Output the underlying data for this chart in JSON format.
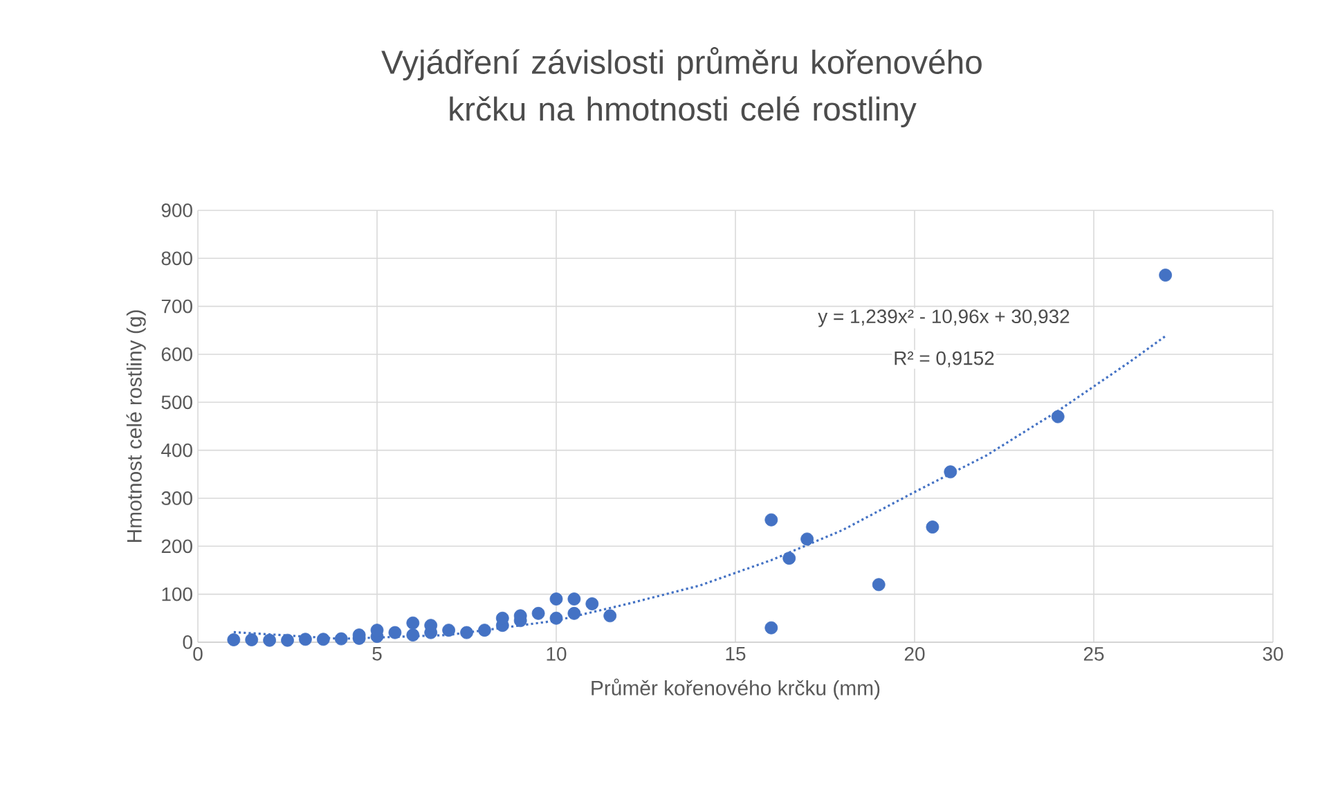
{
  "chart_data": {
    "type": "scatter",
    "title": "Vyjádření závislosti průměru kořenového krčku na hmotnosti celé rostliny",
    "xlabel": "Průměr kořenového krčku (mm)",
    "ylabel": "Hmotnost celé rostliny (g)",
    "xlim": [
      0,
      30
    ],
    "ylim": [
      0,
      900
    ],
    "xticks": [
      0,
      5,
      10,
      15,
      20,
      25,
      30
    ],
    "yticks": [
      0,
      100,
      200,
      300,
      400,
      500,
      600,
      700,
      800,
      900
    ],
    "grid": true,
    "marker": "circle",
    "annotations": [
      "y = 1,239x² - 10,96x + 30,932",
      "R² = 0,9152"
    ],
    "series": [
      {
        "color": "#4472c4",
        "x": [
          1,
          1.5,
          2,
          2.5,
          3,
          3.5,
          4,
          4.5,
          4.5,
          5,
          5,
          5.5,
          6,
          6,
          6.5,
          6.5,
          7,
          7.5,
          8,
          8.5,
          8.5,
          9,
          9,
          9.5,
          10,
          10,
          10.5,
          10.5,
          11,
          11.5,
          16,
          16,
          16.5,
          17,
          19,
          20.5,
          21,
          24,
          27
        ],
        "values": [
          5,
          5,
          4,
          4,
          6,
          6,
          7,
          8,
          15,
          12,
          25,
          20,
          15,
          40,
          20,
          35,
          25,
          20,
          25,
          35,
          50,
          45,
          55,
          60,
          50,
          90,
          60,
          90,
          80,
          55,
          30,
          255,
          175,
          215,
          120,
          240,
          355,
          470,
          765
        ]
      },
      {
        "type": "line",
        "color": "#4472c4",
        "line_style": "dotted",
        "marker": "none",
        "x": [
          1,
          4,
          7,
          10,
          12,
          14,
          16,
          18,
          20,
          22,
          24,
          26,
          27
        ],
        "values": [
          21,
          7,
          15,
          45,
          80,
          118,
          171,
          234,
          313,
          389,
          482,
          584,
          638
        ]
      }
    ]
  }
}
